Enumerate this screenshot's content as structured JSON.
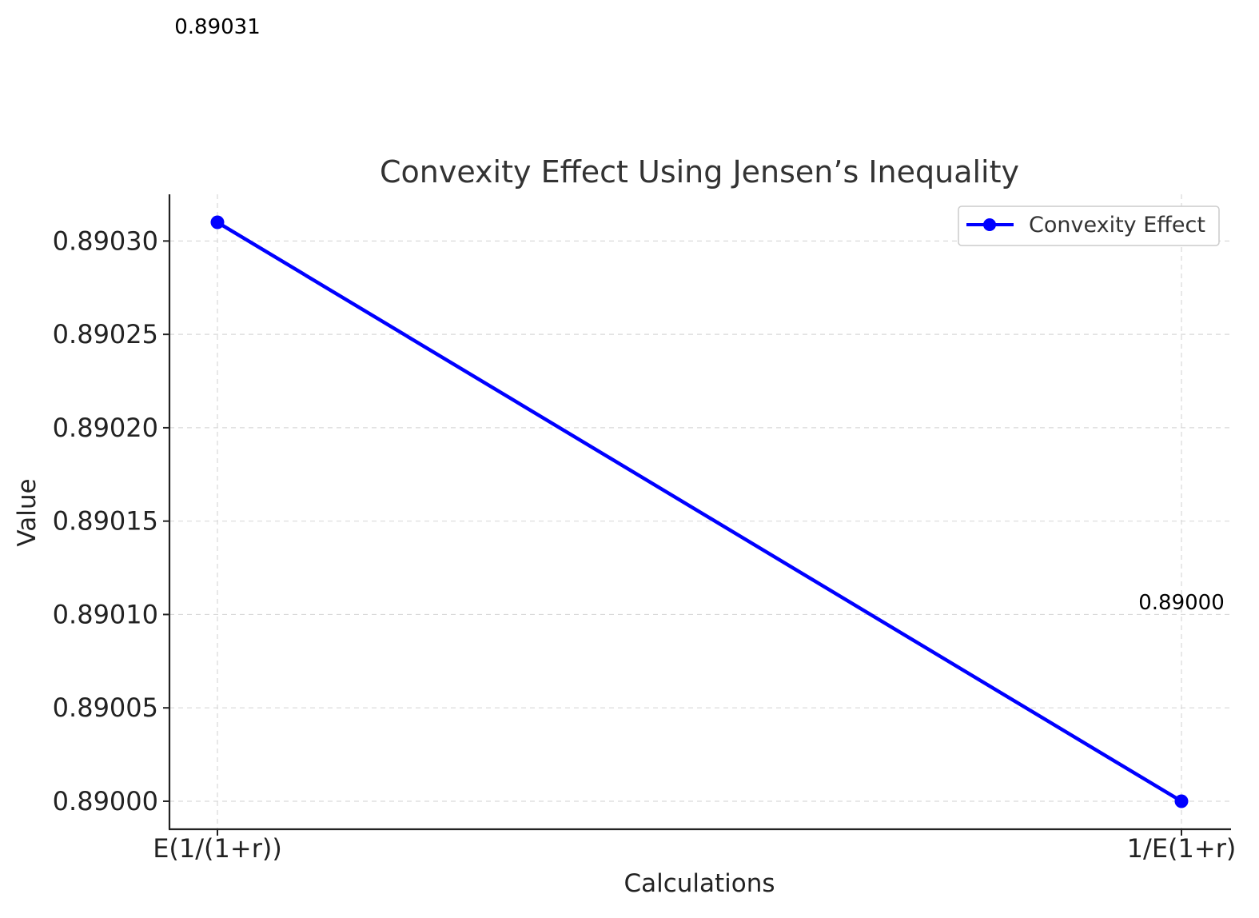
{
  "chart_data": {
    "type": "line",
    "title": "Convexity Effect Using Jensen’s Inequality",
    "xlabel": "Calculations",
    "ylabel": "Value",
    "categories": [
      "E(1/(1+r))",
      "1/E(1+r)"
    ],
    "series": [
      {
        "name": "Convexity Effect",
        "values": [
          0.89031,
          0.89
        ],
        "color": "#0000ff",
        "marker": "circle"
      }
    ],
    "data_labels": [
      "0.89031",
      "0.89000"
    ],
    "ylim": [
      0.889985,
      0.890325
    ],
    "yticks": [
      0.89,
      0.89005,
      0.8901,
      0.89015,
      0.8902,
      0.89025,
      0.8903
    ],
    "ytick_labels": [
      "0.89000",
      "0.89005",
      "0.89010",
      "0.89015",
      "0.89020",
      "0.89025",
      "0.89030"
    ],
    "grid": true,
    "legend_position": "top-right"
  }
}
